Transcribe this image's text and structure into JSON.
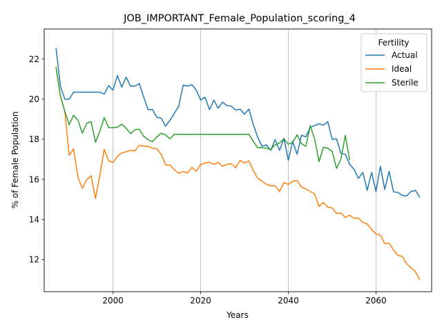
{
  "chart_data": {
    "type": "line",
    "title": "JOB_IMPORTANT_Female_Population_scoring_4",
    "xlabel": "Years",
    "ylabel": "% of Female Population",
    "xlim": [
      1984.3,
      2072.7
    ],
    "ylim": [
      10.4,
      23.5
    ],
    "xticks": [
      2000,
      2020,
      2040,
      2060
    ],
    "yticks": [
      12,
      14,
      16,
      18,
      20,
      22
    ],
    "grid": "x-axis only",
    "legend": {
      "title": "Fertility",
      "position": "top-right"
    },
    "series": [
      {
        "name": "Actual",
        "color": "#1f77b4",
        "x": [
          1987,
          1988,
          1989,
          1990,
          1991,
          1992,
          1993,
          1994,
          1995,
          1996,
          1997,
          1998,
          1999,
          2000,
          2001,
          2002,
          2003,
          2004,
          2005,
          2006,
          2007,
          2008,
          2009,
          2010,
          2011,
          2012,
          2013,
          2014,
          2015,
          2016,
          2017,
          2018,
          2019,
          2020,
          2021,
          2022,
          2023,
          2024,
          2025,
          2026,
          2027,
          2028,
          2029,
          2030,
          2031,
          2032,
          2033,
          2034,
          2035,
          2036,
          2037,
          2038,
          2039,
          2040,
          2041,
          2042,
          2043,
          2044,
          2045,
          2046,
          2047,
          2048,
          2049,
          2050,
          2051,
          2052,
          2053,
          2054,
          2055,
          2056,
          2057,
          2058,
          2059,
          2060,
          2061,
          2062,
          2063,
          2064,
          2065,
          2066,
          2067,
          2068,
          2069,
          2070
        ],
        "y": [
          22.55,
          20.65,
          20.0,
          20.0,
          20.35,
          20.35,
          20.35,
          20.35,
          20.35,
          20.35,
          20.35,
          20.25,
          20.68,
          20.45,
          21.18,
          20.6,
          21.1,
          20.65,
          20.65,
          20.78,
          20.1,
          19.48,
          19.48,
          19.1,
          19.05,
          18.65,
          18.95,
          19.3,
          19.65,
          20.7,
          20.65,
          20.72,
          20.45,
          19.95,
          20.1,
          19.48,
          19.95,
          19.55,
          19.85,
          19.68,
          19.65,
          19.45,
          19.5,
          19.25,
          19.5,
          18.75,
          18.1,
          17.65,
          17.72,
          17.45,
          17.98,
          17.45,
          18.05,
          16.95,
          17.9,
          17.25,
          18.2,
          18.12,
          18.6,
          18.68,
          18.78,
          18.7,
          18.88,
          18.0,
          18.02,
          17.3,
          17.25,
          16.75,
          16.5,
          16.05,
          16.35,
          15.45,
          16.35,
          15.4,
          16.65,
          15.5,
          16.4,
          15.38,
          15.35,
          15.2,
          15.18,
          15.4,
          15.45,
          15.1
        ]
      },
      {
        "name": "Ideal",
        "color": "#ff7f0e",
        "x": [
          1987,
          1988,
          1989,
          1990,
          1991,
          1992,
          1993,
          1994,
          1995,
          1996,
          1997,
          1998,
          1999,
          2000,
          2001,
          2002,
          2003,
          2004,
          2005,
          2006,
          2007,
          2008,
          2009,
          2010,
          2011,
          2012,
          2013,
          2014,
          2015,
          2016,
          2017,
          2018,
          2019,
          2020,
          2021,
          2022,
          2023,
          2024,
          2025,
          2026,
          2027,
          2028,
          2029,
          2030,
          2031,
          2032,
          2033,
          2034,
          2035,
          2036,
          2037,
          2038,
          2039,
          2040,
          2041,
          2042,
          2043,
          2044,
          2045,
          2046,
          2047,
          2048,
          2049,
          2050,
          2051,
          2052,
          2053,
          2054,
          2055,
          2056,
          2057,
          2058,
          2059,
          2060,
          2061,
          2062,
          2063,
          2064,
          2065,
          2066,
          2067,
          2068,
          2069,
          2070
        ],
        "y": [
          21.6,
          20.15,
          19.4,
          17.2,
          17.52,
          16.1,
          15.55,
          15.98,
          16.18,
          15.05,
          16.2,
          17.5,
          16.92,
          16.85,
          17.15,
          17.32,
          17.38,
          17.45,
          17.42,
          17.7,
          17.65,
          17.65,
          17.55,
          17.52,
          17.25,
          16.72,
          16.72,
          16.48,
          16.3,
          16.4,
          16.32,
          16.6,
          16.4,
          16.75,
          16.82,
          16.85,
          16.75,
          16.85,
          16.65,
          16.75,
          16.78,
          16.58,
          16.95,
          16.82,
          16.92,
          16.45,
          16.05,
          15.92,
          15.75,
          15.68,
          15.68,
          15.4,
          15.85,
          15.75,
          15.9,
          15.95,
          15.62,
          15.52,
          15.4,
          15.28,
          14.65,
          14.85,
          14.62,
          14.58,
          14.3,
          14.32,
          14.1,
          14.22,
          14.05,
          14.08,
          13.85,
          13.78,
          13.5,
          13.28,
          13.22,
          12.8,
          12.82,
          12.48,
          12.22,
          12.15,
          11.8,
          11.6,
          11.4,
          10.98
        ]
      },
      {
        "name": "Sterile",
        "color": "#2ca02c",
        "x": [
          1987,
          1988,
          1989,
          1990,
          1991,
          1992,
          1993,
          1994,
          1995,
          1996,
          1997,
          1998,
          1999,
          2000,
          2001,
          2002,
          2003,
          2004,
          2005,
          2006,
          2007,
          2008,
          2009,
          2010,
          2011,
          2012,
          2013,
          2014,
          2015,
          2016,
          2017,
          2018,
          2019,
          2020,
          2021,
          2022,
          2023,
          2024,
          2025,
          2026,
          2027,
          2028,
          2029,
          2030,
          2031,
          2032,
          2033,
          2034,
          2035,
          2036,
          2037,
          2038,
          2039,
          2040,
          2041,
          2042,
          2043,
          2044,
          2045,
          2046,
          2047,
          2048,
          2049,
          2050,
          2051,
          2052,
          2053,
          2054
        ],
        "y": [
          21.6,
          20.15,
          19.4,
          18.72,
          19.2,
          18.95,
          18.3,
          18.8,
          18.88,
          17.85,
          18.4,
          19.08,
          18.58,
          18.58,
          18.6,
          18.75,
          18.55,
          18.28,
          18.48,
          18.5,
          18.15,
          17.98,
          17.88,
          18.12,
          18.3,
          18.22,
          18.02,
          18.25,
          18.25,
          18.25,
          18.25,
          18.25,
          18.25,
          18.25,
          18.25,
          18.25,
          18.25,
          18.25,
          18.25,
          18.25,
          18.25,
          18.25,
          18.25,
          18.25,
          18.25,
          17.9,
          17.58,
          17.58,
          17.55,
          17.5,
          17.72,
          17.82,
          18.02,
          17.75,
          17.85,
          18.22,
          17.78,
          17.65,
          18.68,
          18.02,
          16.88,
          17.6,
          17.55,
          17.4,
          16.55,
          17.0,
          18.2,
          16.95
        ]
      }
    ]
  }
}
